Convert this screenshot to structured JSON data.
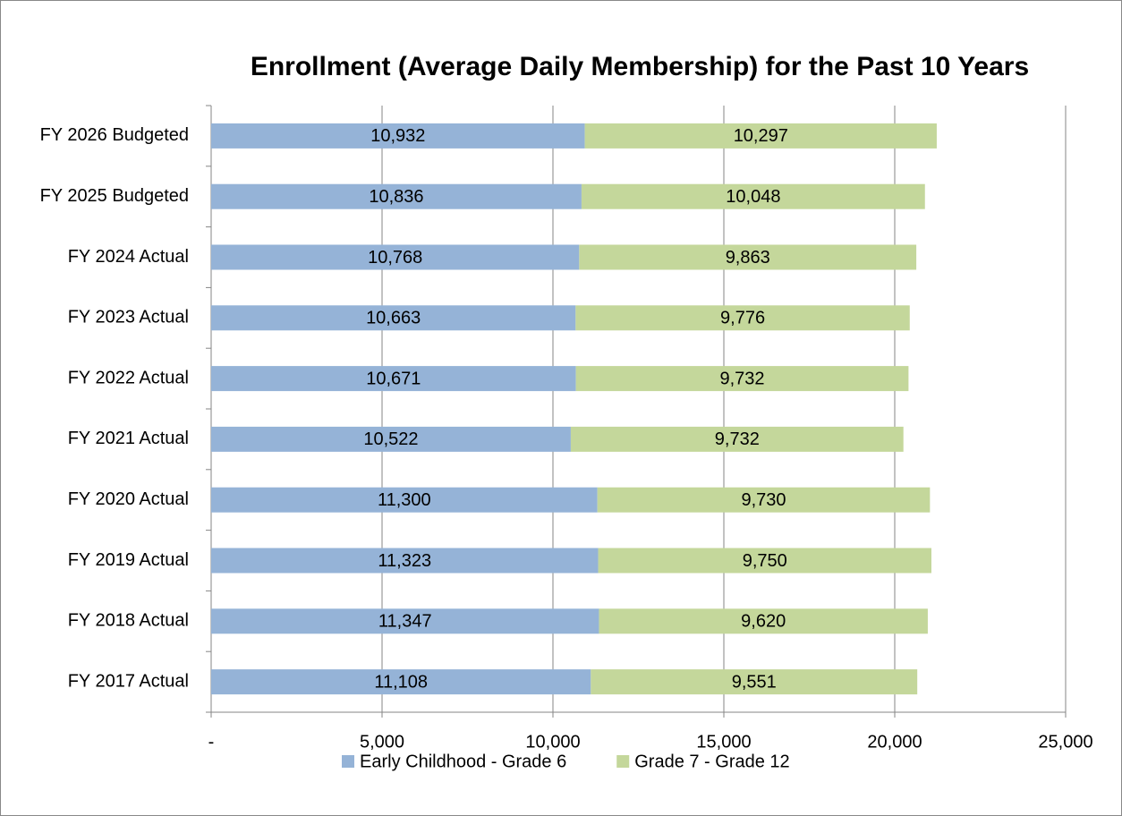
{
  "chart_data": {
    "type": "stacked-bar-horizontal",
    "title": "Enrollment (Average Daily Membership) for the Past 10 Years",
    "categories": [
      "FY 2026 Budgeted",
      "FY 2025 Budgeted",
      "FY 2024 Actual",
      "FY 2023 Actual",
      "FY 2022 Actual",
      "FY 2021 Actual",
      "FY 2020 Actual",
      "FY 2019 Actual",
      "FY 2018 Actual",
      "FY 2017 Actual"
    ],
    "series": [
      {
        "name": "Early Childhood - Grade 6",
        "color": "#95b3d7",
        "values": [
          10932,
          10836,
          10768,
          10663,
          10671,
          10522,
          11300,
          11323,
          11347,
          11108
        ],
        "value_labels": [
          "10,932",
          "10,836",
          "10,768",
          "10,663",
          "10,671",
          "10,522",
          "11,300",
          "11,323",
          "11,347",
          "11,108"
        ]
      },
      {
        "name": "Grade 7 - Grade 12",
        "color": "#c4d79b",
        "values": [
          10297,
          10048,
          9863,
          9776,
          9732,
          9732,
          9730,
          9750,
          9620,
          9551
        ],
        "value_labels": [
          "10,297",
          "10,048",
          "9,863",
          "9,776",
          "9,732",
          "9,732",
          "9,730",
          "9,750",
          "9,620",
          "9,551"
        ]
      }
    ],
    "xlim": [
      0,
      25000
    ],
    "xticks": [
      {
        "value": 0,
        "label": "-"
      },
      {
        "value": 5000,
        "label": "5,000"
      },
      {
        "value": 10000,
        "label": "10,000"
      },
      {
        "value": 15000,
        "label": "15,000"
      },
      {
        "value": 20000,
        "label": "20,000"
      },
      {
        "value": 25000,
        "label": "25,000"
      }
    ],
    "grid": true,
    "legend": "bottom"
  }
}
